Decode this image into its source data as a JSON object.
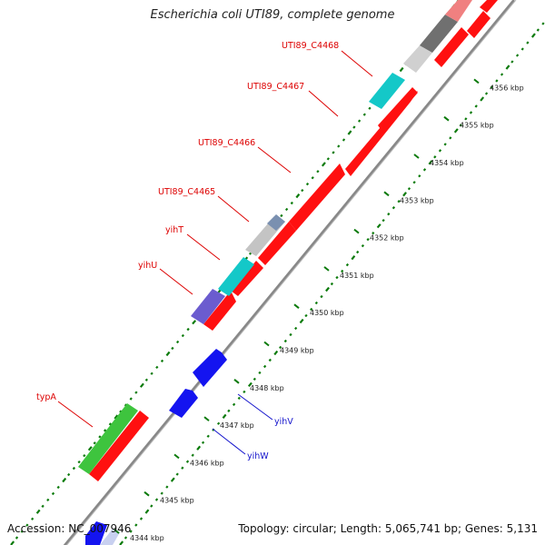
{
  "title": "Escherichia coli UTI89, complete genome",
  "footer": {
    "accession": "Accession: NC_007946",
    "summary": "Topology: circular; Length: 5,065,741 bp; Genes: 5,131"
  },
  "colors": {
    "forward_gene": "#ff1010",
    "reverse_gene": "#1414f0",
    "gc_ticks": "#0a7a0a",
    "backbone": "#888888",
    "label_forward": "#dd0000",
    "label_reverse": "#1414cc"
  },
  "kbp_labels": [
    "4344 kbp",
    "4345 kbp",
    "4346 kbp",
    "4347 kbp",
    "4348 kbp",
    "4349 kbp",
    "4350 kbp",
    "4351 kbp",
    "4352 kbp",
    "4353 kbp",
    "4354 kbp",
    "4355 kbp",
    "4356 kbp"
  ],
  "forward_labels": [
    "UTI89_C4468",
    "UTI89_C4467",
    "UTI89_C4466",
    "UTI89_C4465",
    "yihT",
    "yihU",
    "typA"
  ],
  "reverse_labels": [
    "yihV",
    "yihW"
  ]
}
